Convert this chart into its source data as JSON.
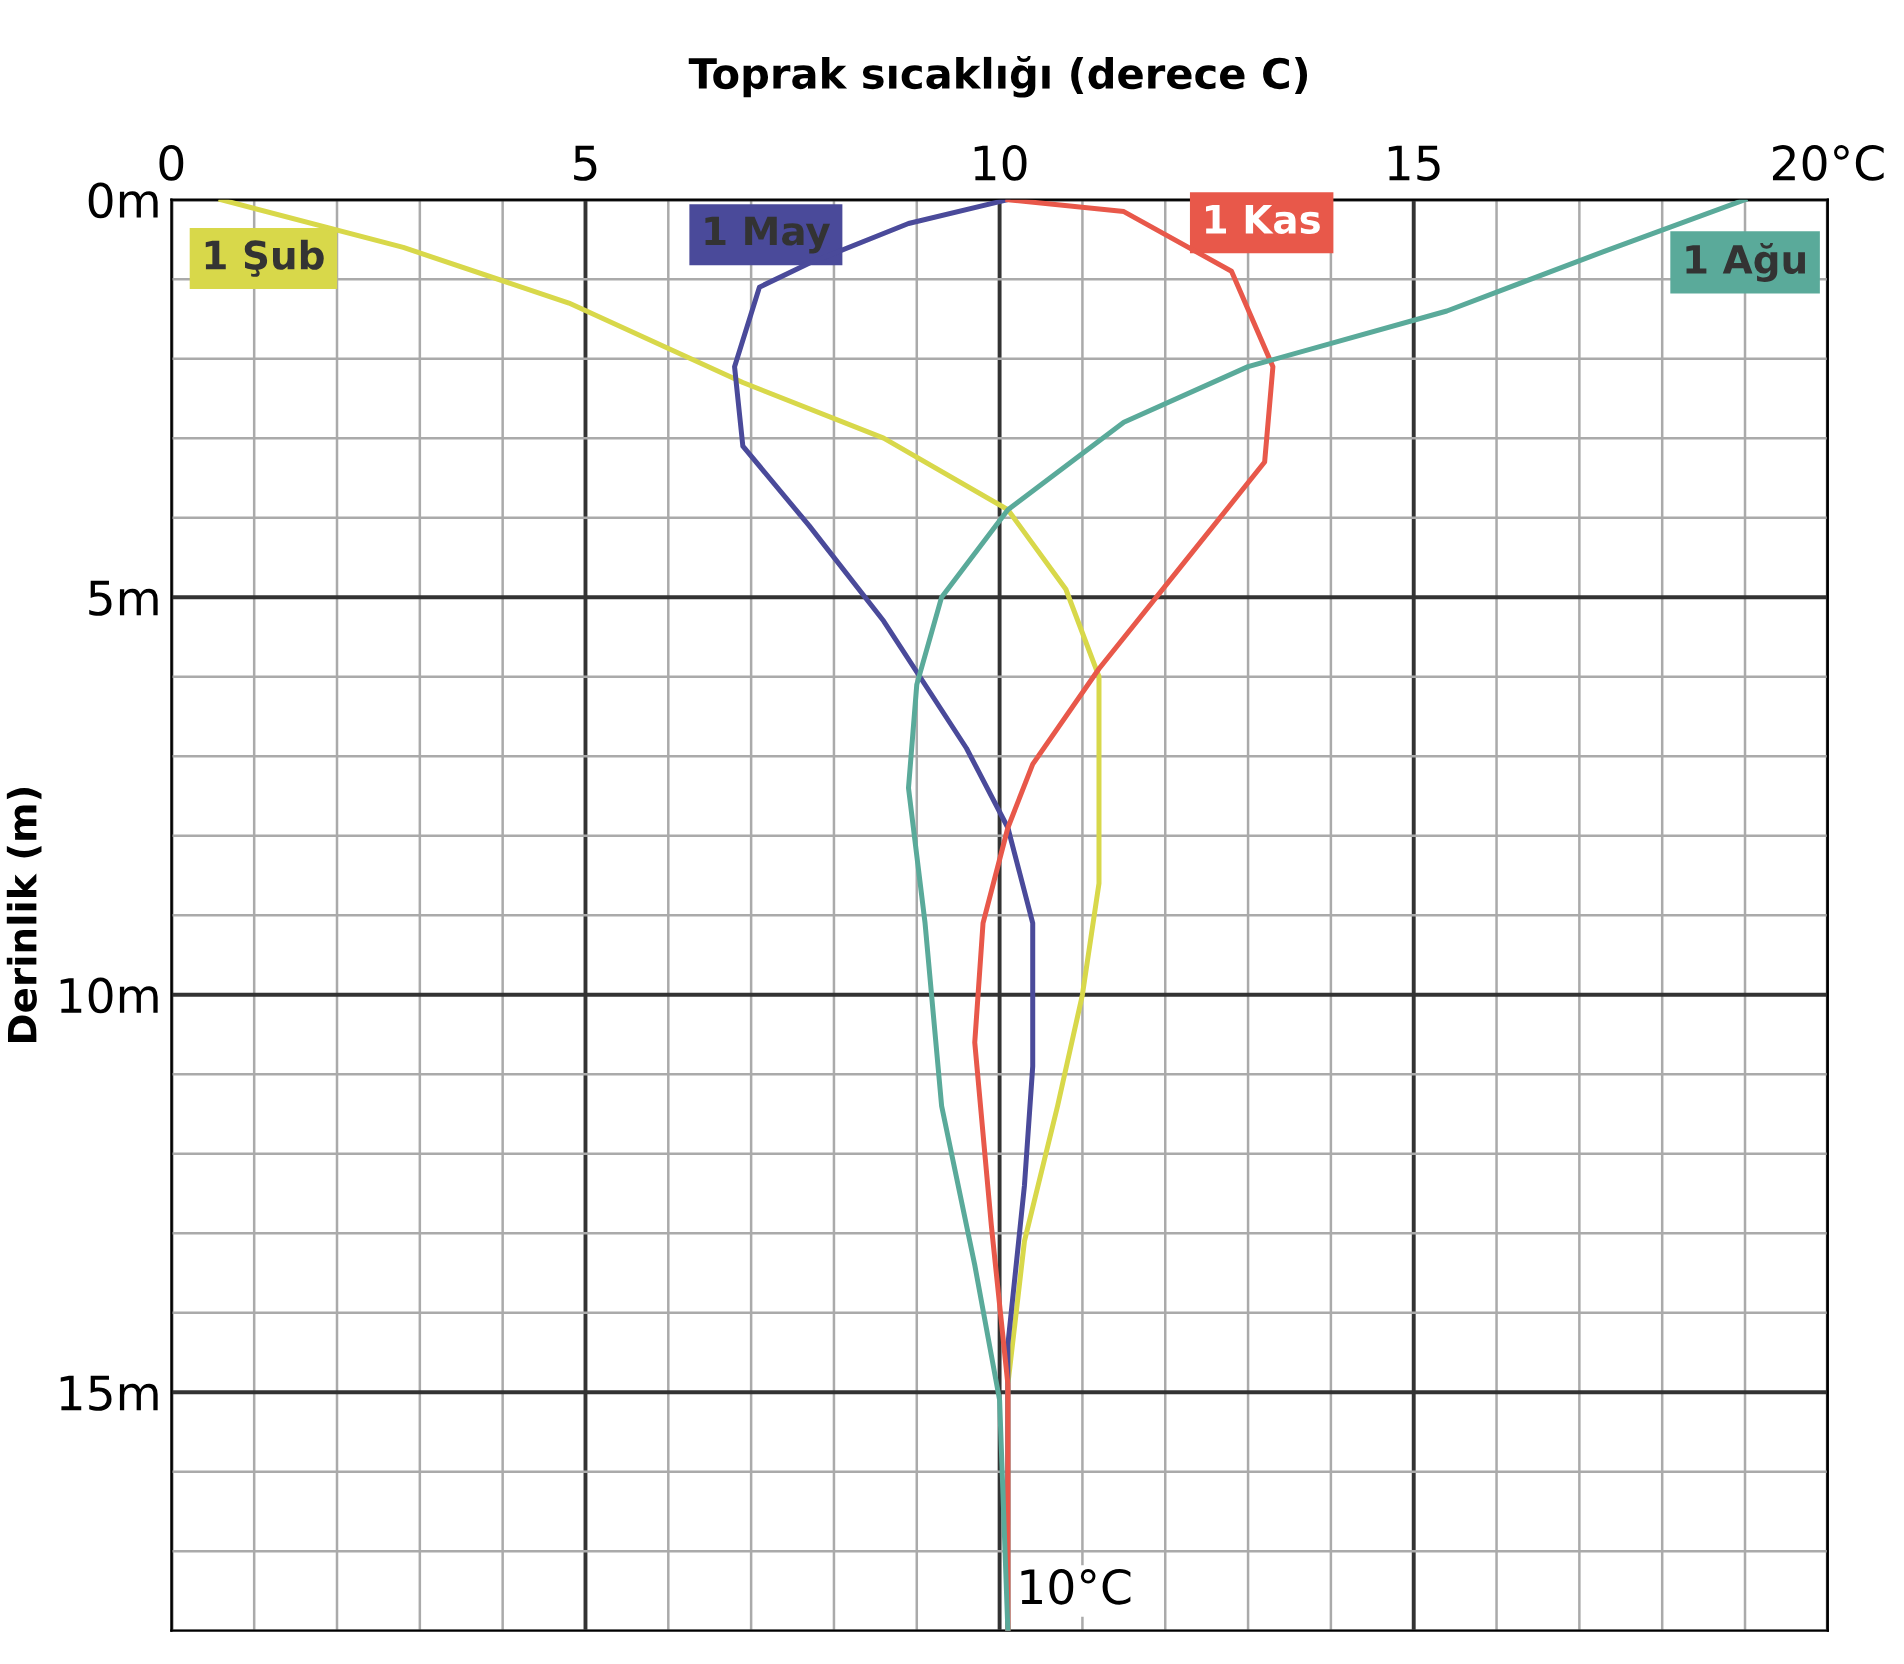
{
  "chart_data": {
    "type": "line",
    "title": "Toprak sıcaklığı (derece C)",
    "ylabel": "Derinlik (m)",
    "xlim": [
      0,
      20
    ],
    "xticks": [
      0,
      5,
      10,
      {
        "value": 15,
        "label": "15"
      },
      {
        "value": 20,
        "label": "20°C"
      }
    ],
    "ylim": [
      18,
      0
    ],
    "yticks": [
      {
        "value": 0,
        "label": "0m"
      },
      {
        "value": 5,
        "label": "5m"
      },
      {
        "value": 10,
        "label": "10m"
      },
      {
        "value": 15,
        "label": "15m"
      }
    ],
    "grid": true,
    "legend": false,
    "marker": "none",
    "line_style": "solid",
    "series": [
      {
        "name": "1 Şub",
        "color": "#d8d84a",
        "x": [
          0.6,
          2.8,
          4.8,
          6.9,
          8.6,
          10.1,
          10.8,
          11.2,
          11.2,
          11.2,
          11.0,
          10.7,
          10.3,
          10.1,
          10.1,
          10.1
        ],
        "values": [
          0,
          0.6,
          1.3,
          2.3,
          3.0,
          3.9,
          4.9,
          6.0,
          6.9,
          8.6,
          10.0,
          11.4,
          13.1,
          14.9,
          16.4,
          18
        ]
      },
      {
        "name": "1 May",
        "color": "#4a4a9a",
        "x": [
          10.1,
          8.9,
          7.7,
          7.1,
          6.8,
          6.9,
          7.7,
          8.6,
          9.6,
          10.1,
          10.4,
          10.4,
          10.3,
          10.1,
          10.1
        ],
        "values": [
          0,
          0.3,
          0.8,
          1.1,
          2.1,
          3.1,
          4.1,
          5.3,
          6.9,
          7.9,
          9.1,
          10.9,
          12.4,
          14.4,
          18
        ]
      },
      {
        "name": "1 Kas",
        "color": "#e8584a",
        "x": [
          10.1,
          11.5,
          12.8,
          13.3,
          13.2,
          12.2,
          11.2,
          10.4,
          10.1,
          9.8,
          9.7,
          9.9,
          10.1,
          10.1
        ],
        "values": [
          0,
          0.15,
          0.9,
          2.1,
          3.3,
          4.6,
          5.9,
          7.1,
          7.9,
          9.1,
          10.6,
          12.9,
          14.9,
          18
        ]
      },
      {
        "name": "1 Ağu",
        "color": "#5aaa9a",
        "x": [
          19.0,
          17.3,
          15.4,
          13.0,
          11.5,
          10.1,
          9.3,
          9.0,
          8.9,
          9.1,
          9.3,
          9.7,
          10.0,
          10.1
        ],
        "values": [
          0,
          0.65,
          1.4,
          2.1,
          2.8,
          3.9,
          5.0,
          6.1,
          7.4,
          9.1,
          11.4,
          13.4,
          15.1,
          18
        ]
      }
    ],
    "annotations": [
      {
        "text": "10°C",
        "x": 10,
        "y": 17.5
      }
    ]
  }
}
